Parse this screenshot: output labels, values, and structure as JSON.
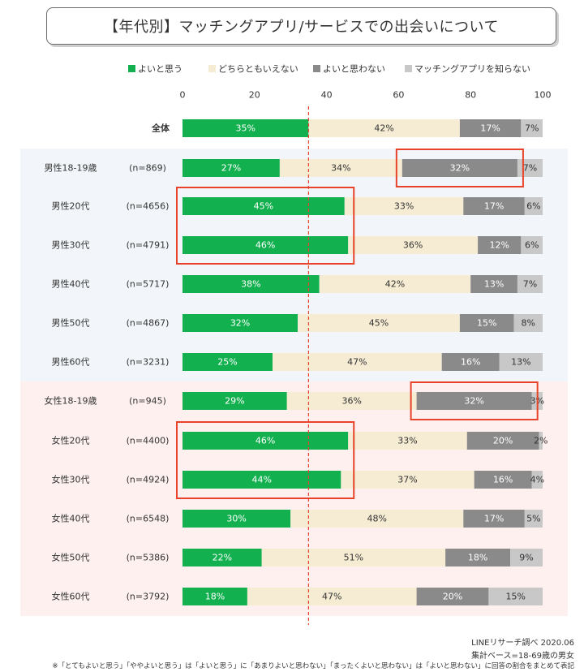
{
  "title": "【年代別】マッチングアプリ/サービスでの出会いについて",
  "source": "LINEリサーチ調べ 2020.06",
  "base": "集計ベース=18-69歳の男女",
  "note": "※「とてもよいと思う」「ややよいと思う」は「よいと思う」に「あまりよいと思わない」「まったくよいと思わない」は「よいと思わない」に回答の割合をまとめて表記",
  "colors": {
    "good": "#13b04f",
    "neutral": "#f6ecd3",
    "bad": "#8a8a8a",
    "unknown": "#c8c8c8",
    "male_band": "#f2f6fa",
    "female_band": "#fdf0ef",
    "highlight": "#e8432a",
    "refline": "#e8432a"
  },
  "chart_data": {
    "type": "bar",
    "orientation": "horizontal",
    "stacked": true,
    "xlim": [
      0,
      100
    ],
    "xticks": [
      0,
      20,
      40,
      60,
      80,
      100
    ],
    "reference_line_x": 35,
    "legend_position": "top",
    "series": [
      {
        "name": "よいと思う",
        "color": "#13b04f"
      },
      {
        "name": "どちらともいえない",
        "color": "#f6ecd3"
      },
      {
        "name": "よいと思わない",
        "color": "#8a8a8a"
      },
      {
        "name": "マッチングアプリを知らない",
        "color": "#c8c8c8"
      }
    ],
    "rows": [
      {
        "label": "全体",
        "n": "",
        "values": [
          35,
          42,
          17,
          7
        ],
        "band": "none",
        "bold": true
      },
      {
        "label": "男性18-19歳",
        "n": "(n=869)",
        "values": [
          27,
          34,
          32,
          7
        ],
        "band": "male",
        "highlight_seg": 2
      },
      {
        "label": "男性20代",
        "n": "(n=4656)",
        "values": [
          45,
          33,
          17,
          6
        ],
        "band": "male"
      },
      {
        "label": "男性30代",
        "n": "(n=4791)",
        "values": [
          46,
          36,
          12,
          6
        ],
        "band": "male"
      },
      {
        "label": "男性40代",
        "n": "(n=5717)",
        "values": [
          38,
          42,
          13,
          7
        ],
        "band": "male"
      },
      {
        "label": "男性50代",
        "n": "(n=4867)",
        "values": [
          32,
          45,
          15,
          8
        ],
        "band": "male"
      },
      {
        "label": "男性60代",
        "n": "(n=3231)",
        "values": [
          25,
          47,
          16,
          13
        ],
        "band": "male"
      },
      {
        "label": "女性18-19歳",
        "n": "(n=945)",
        "values": [
          29,
          36,
          32,
          3
        ],
        "band": "female",
        "highlight_seg": 2
      },
      {
        "label": "女性20代",
        "n": "(n=4400)",
        "values": [
          46,
          33,
          20,
          2
        ],
        "band": "female"
      },
      {
        "label": "女性30代",
        "n": "(n=4924)",
        "values": [
          44,
          37,
          16,
          4
        ],
        "band": "female"
      },
      {
        "label": "女性40代",
        "n": "(n=6548)",
        "values": [
          30,
          48,
          17,
          5
        ],
        "band": "female"
      },
      {
        "label": "女性50代",
        "n": "(n=5386)",
        "values": [
          22,
          51,
          18,
          9
        ],
        "band": "female"
      },
      {
        "label": "女性60代",
        "n": "(n=3792)",
        "values": [
          18,
          47,
          20,
          15
        ],
        "band": "female"
      }
    ],
    "highlight_groups": [
      {
        "rows": [
          2,
          3
        ],
        "segment": 0
      },
      {
        "rows": [
          8,
          9
        ],
        "segment": 0
      }
    ]
  }
}
